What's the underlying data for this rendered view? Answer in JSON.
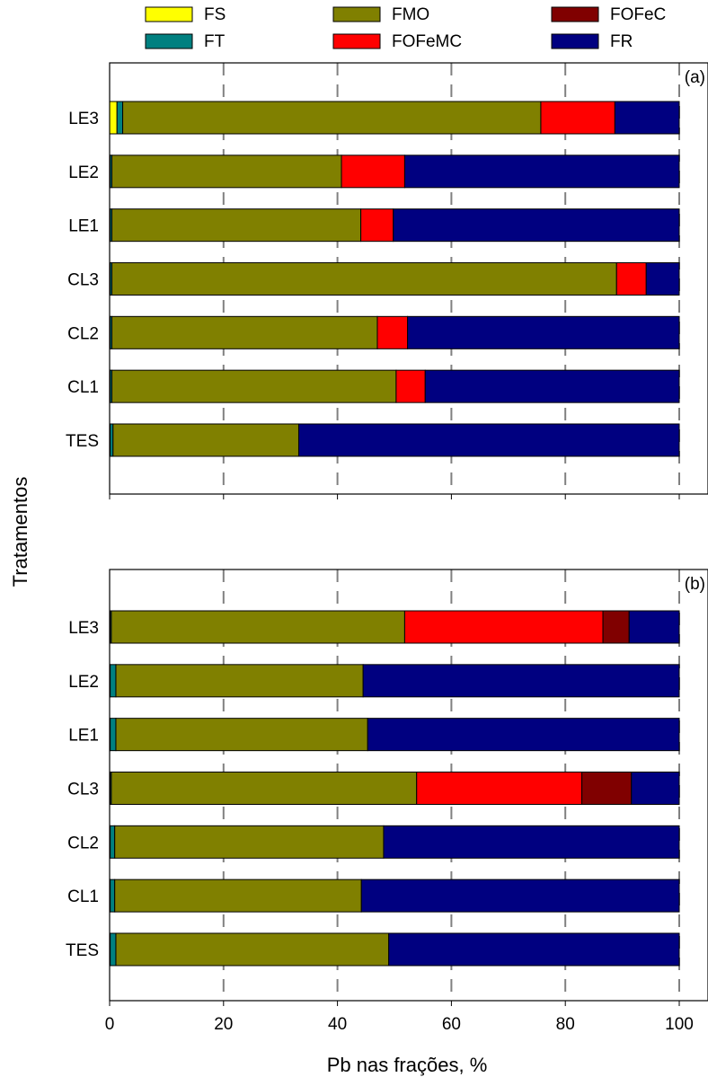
{
  "chart_data": {
    "type": "bar",
    "orientation": "horizontal",
    "stacked": true,
    "xlabel": "Pb nas frações, %",
    "ylabel": "Tratamentos",
    "xlim": [
      0,
      100
    ],
    "xticks": [
      0,
      20,
      40,
      60,
      80,
      100
    ],
    "grid": "vertical dashed",
    "legend_position": "top",
    "categories": [
      "LE3",
      "LE2",
      "LE1",
      "CL3",
      "CL2",
      "CL1",
      "TES"
    ],
    "series": [
      {
        "name": "FS",
        "color": "#ffff00"
      },
      {
        "name": "FT",
        "color": "#008080"
      },
      {
        "name": "FMO",
        "color": "#808000"
      },
      {
        "name": "FOFeMC",
        "color": "#ff0000"
      },
      {
        "name": "FOFeC",
        "color": "#800000"
      },
      {
        "name": "FR",
        "color": "#000080"
      }
    ],
    "panels": [
      {
        "label": "(a)",
        "values": {
          "LE3": [
            1.3,
            1.0,
            73.4,
            13.0,
            0.0,
            11.3
          ],
          "LE2": [
            0.1,
            0.3,
            40.3,
            11.1,
            0.0,
            48.2
          ],
          "LE1": [
            0.1,
            0.3,
            43.7,
            5.7,
            0.0,
            50.2
          ],
          "CL3": [
            0.1,
            0.3,
            88.6,
            5.2,
            0.0,
            5.8
          ],
          "CL2": [
            0.1,
            0.3,
            46.6,
            5.3,
            0.0,
            47.7
          ],
          "CL1": [
            0.1,
            0.3,
            49.9,
            5.1,
            0.0,
            44.6
          ],
          "TES": [
            0.1,
            0.5,
            32.6,
            0.0,
            0.0,
            66.8
          ]
        }
      },
      {
        "label": "(b)",
        "values": {
          "LE3": [
            0.1,
            0.2,
            51.5,
            34.8,
            4.6,
            8.8
          ],
          "LE2": [
            0.1,
            1.0,
            43.4,
            0.0,
            0.0,
            55.5
          ],
          "LE1": [
            0.1,
            1.0,
            44.2,
            0.0,
            0.0,
            54.7
          ],
          "CL3": [
            0.1,
            0.2,
            53.6,
            29.0,
            8.7,
            8.4
          ],
          "CL2": [
            0.1,
            0.8,
            47.2,
            0.0,
            0.0,
            51.9
          ],
          "CL1": [
            0.1,
            0.8,
            43.3,
            0.0,
            0.0,
            55.8
          ],
          "TES": [
            0.1,
            1.0,
            47.9,
            0.0,
            0.0,
            51.0
          ]
        }
      }
    ]
  }
}
